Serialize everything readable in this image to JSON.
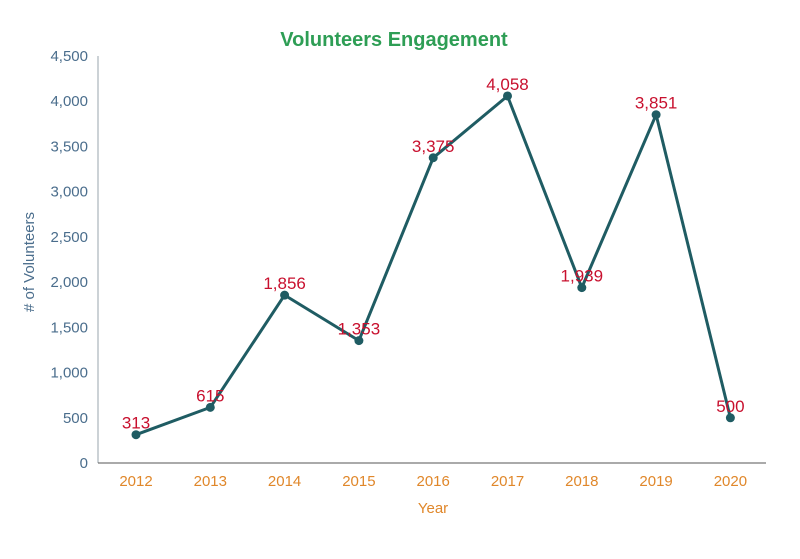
{
  "chart_data": {
    "type": "line",
    "title": "Volunteers Engagement",
    "xlabel": "Year",
    "ylabel": "# of Volunteers",
    "categories": [
      "2012",
      "2013",
      "2014",
      "2015",
      "2016",
      "2017",
      "2018",
      "2019",
      "2020"
    ],
    "values": [
      313,
      615,
      1856,
      1353,
      3375,
      4058,
      1939,
      3851,
      500
    ],
    "data_labels": [
      "313",
      "615",
      "1,856",
      "1,353",
      "3,375",
      "4,058",
      "1,939",
      "3,851",
      "500"
    ],
    "ylim": [
      0,
      4500
    ],
    "yticks": [
      0,
      500,
      1000,
      1500,
      2000,
      2500,
      3000,
      3500,
      4000,
      4500
    ],
    "ytick_labels": [
      "0",
      "500",
      "1,000",
      "1,500",
      "2,000",
      "2,500",
      "3,000",
      "3,500",
      "4,000",
      "4,500"
    ],
    "grid": false,
    "line_color": "#1f5c63",
    "label_color": "#c8102e",
    "title_color": "#2e9e55",
    "xaxis_color": "#e0872a",
    "yaxis_color": "#4a6d8c"
  }
}
